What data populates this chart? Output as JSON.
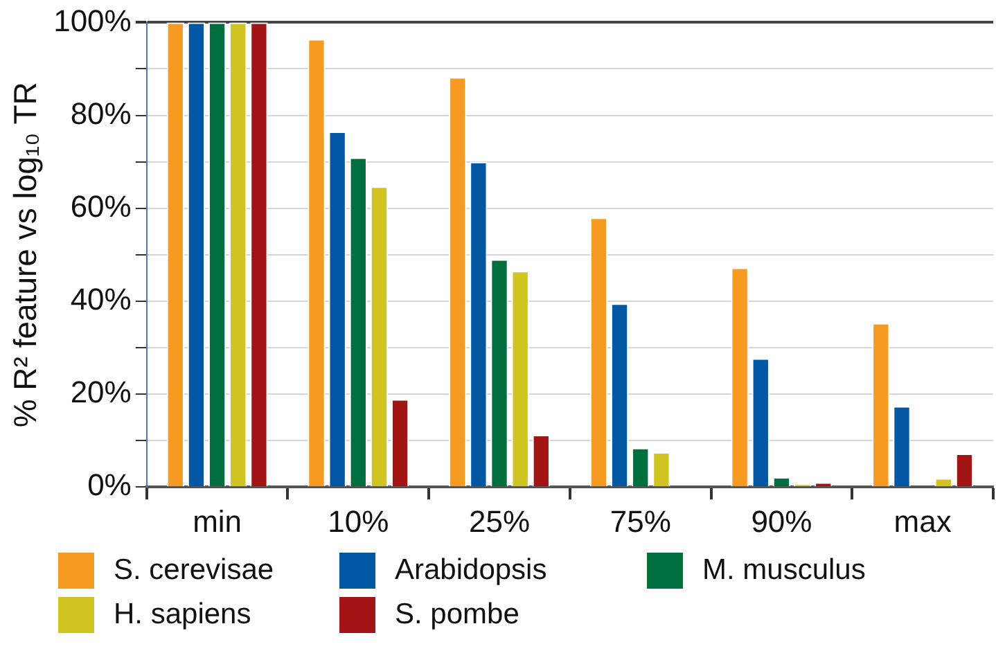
{
  "chart_data": {
    "type": "bar",
    "ylabel": "% R² feature vs log₁₀ TR",
    "categories": [
      "min",
      "10%",
      "25%",
      "75%",
      "90%",
      "max"
    ],
    "series": [
      {
        "name": "S. cerevisae",
        "color": "#f79a21",
        "values": [
          100,
          96.4,
          88.2,
          58,
          47.2,
          35.3
        ]
      },
      {
        "name": "Arabidopsis",
        "color": "#0057a3",
        "values": [
          100,
          76.5,
          70,
          39.5,
          27.7,
          17.4
        ]
      },
      {
        "name": "M. musculus",
        "color": "#006f3f",
        "values": [
          100,
          70.9,
          49,
          8.4,
          2.1,
          0
        ]
      },
      {
        "name": "H. sapiens",
        "color": "#d1c420",
        "values": [
          100,
          64.7,
          46.5,
          7.5,
          0.7,
          1.9
        ]
      },
      {
        "name": "S. pombe",
        "color": "#a31515",
        "values": [
          100,
          18.9,
          11.2,
          0,
          1,
          7.2
        ]
      }
    ],
    "ylim": [
      0,
      100
    ],
    "yticks": [
      {
        "value": 0,
        "label": "0%"
      },
      {
        "value": 10,
        "label": null
      },
      {
        "value": 20,
        "label": "20%"
      },
      {
        "value": 30,
        "label": null
      },
      {
        "value": 40,
        "label": "40%"
      },
      {
        "value": 50,
        "label": null
      },
      {
        "value": 60,
        "label": "60%"
      },
      {
        "value": 70,
        "label": null
      },
      {
        "value": 80,
        "label": "80%"
      },
      {
        "value": 90,
        "label": null
      },
      {
        "value": 100,
        "label": "100%"
      }
    ],
    "grid": "y",
    "legend": "bottom"
  }
}
